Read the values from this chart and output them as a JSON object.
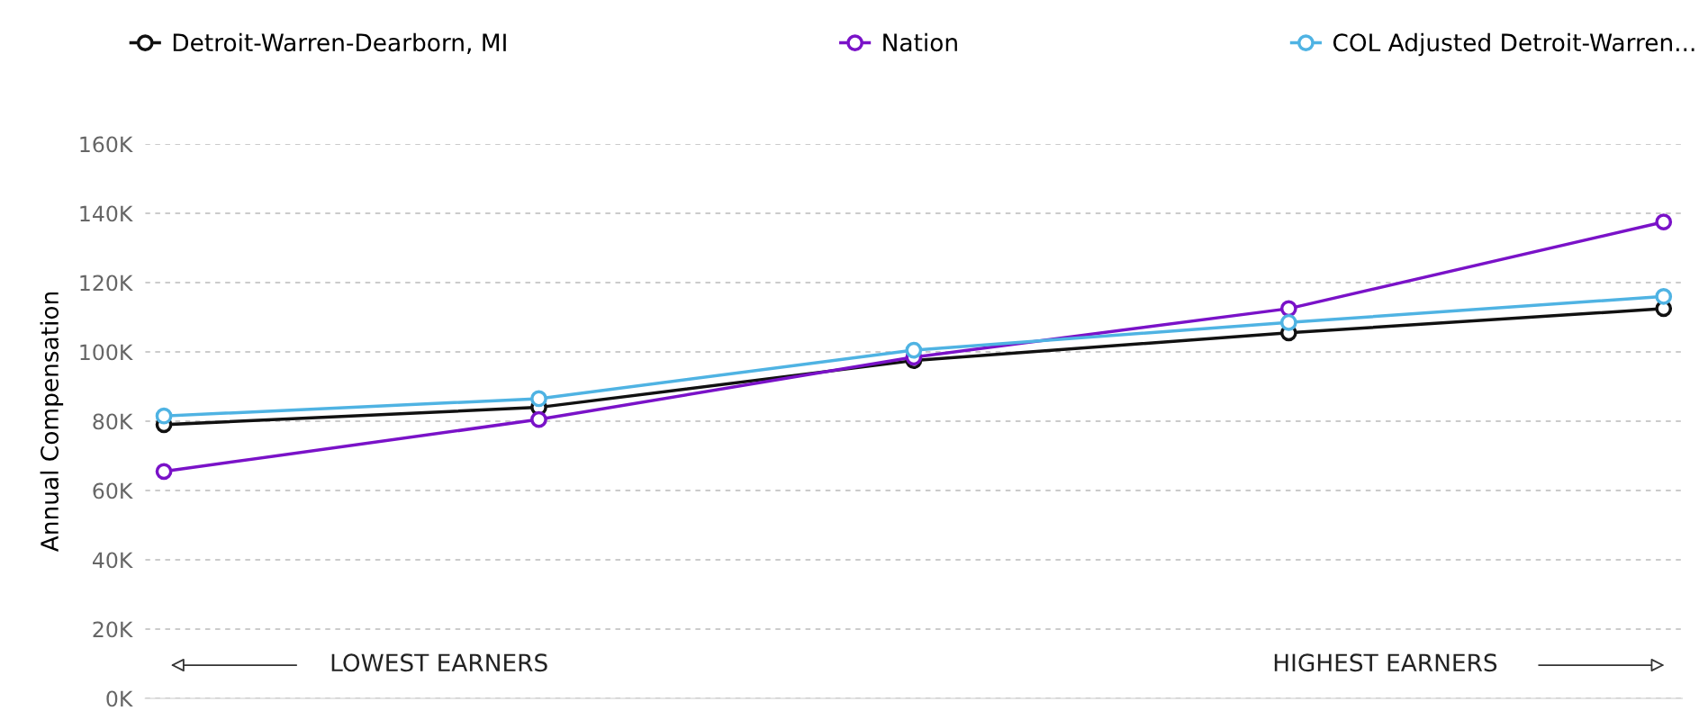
{
  "chart_data": {
    "type": "line",
    "ylabel": "Annual Compensation",
    "categories": [
      null,
      null,
      null,
      null,
      null
    ],
    "series": [
      {
        "name": "Detroit-Warren-Dearborn, MI",
        "color": "#111111",
        "values": [
          79,
          84,
          97.5,
          105.5,
          112.5
        ]
      },
      {
        "name": "Nation",
        "color": "#7a12c8",
        "values": [
          65.5,
          80.5,
          98.5,
          112.5,
          137.5
        ]
      },
      {
        "name": "COL Adjusted Detroit-Warren...",
        "color": "#4fb3e3",
        "values": [
          81.5,
          86.5,
          100.5,
          108.5,
          116
        ]
      }
    ],
    "ylim": [
      0,
      160
    ],
    "yticks": [
      {
        "value": 0,
        "label": "0K"
      },
      {
        "value": 20,
        "label": "20K"
      },
      {
        "value": 40,
        "label": "40K"
      },
      {
        "value": 60,
        "label": "60K"
      },
      {
        "value": 80,
        "label": "80K"
      },
      {
        "value": 100,
        "label": "100K"
      },
      {
        "value": 120,
        "label": "120K"
      },
      {
        "value": 140,
        "label": "140K"
      },
      {
        "value": 160,
        "label": "160K"
      }
    ],
    "annotations": [
      "LOWEST EARNERS",
      "HIGHEST EARNERS"
    ],
    "grid": "y",
    "legend": "top",
    "marker": "circle",
    "line_style": "solid"
  }
}
